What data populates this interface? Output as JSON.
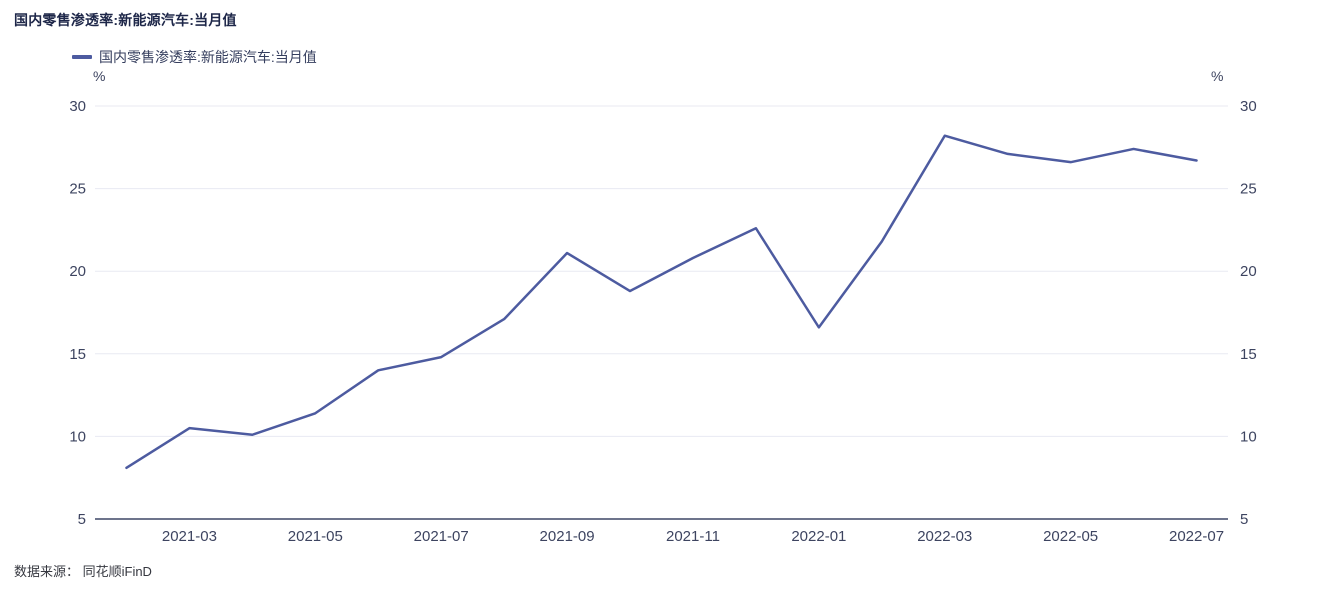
{
  "page": {
    "title": "国内零售渗透率:新能源汽车:当月值",
    "source_label": "数据来源： 同花顺iFinD"
  },
  "legend": {
    "items": [
      {
        "label": "国内零售渗透率:新能源汽车:当月值",
        "color": "#4d5ba0"
      }
    ]
  },
  "chart_data": {
    "type": "line",
    "title": "国内零售渗透率:新能源汽车:当月值",
    "unit_left": "%",
    "unit_right": "%",
    "x": [
      "2021-02",
      "2021-03",
      "2021-04",
      "2021-05",
      "2021-06",
      "2021-07",
      "2021-08",
      "2021-09",
      "2021-10",
      "2021-11",
      "2021-12",
      "2022-01",
      "2022-02",
      "2022-03",
      "2022-04",
      "2022-05",
      "2022-06",
      "2022-07"
    ],
    "series": [
      {
        "name": "国内零售渗透率:新能源汽车:当月值",
        "color": "#4d5ba0",
        "values": [
          8.1,
          10.5,
          10.1,
          11.4,
          14.0,
          14.8,
          17.1,
          21.1,
          18.8,
          20.8,
          22.6,
          16.6,
          21.8,
          28.2,
          27.1,
          26.6,
          27.4,
          26.7
        ]
      }
    ],
    "ylim": [
      5,
      30
    ],
    "yticks": [
      5,
      10,
      15,
      20,
      25,
      30
    ],
    "xtick_labels": [
      "2021-03",
      "2021-05",
      "2021-07",
      "2021-09",
      "2021-11",
      "2022-01",
      "2022-03",
      "2022-05",
      "2022-07"
    ],
    "grid": true,
    "legend_position": "top-left",
    "colors": {
      "line": "#4d5ba0",
      "gridline": "#e8eaf2",
      "axis_line": "#3d4766",
      "tick_text": "#3d4460"
    }
  }
}
